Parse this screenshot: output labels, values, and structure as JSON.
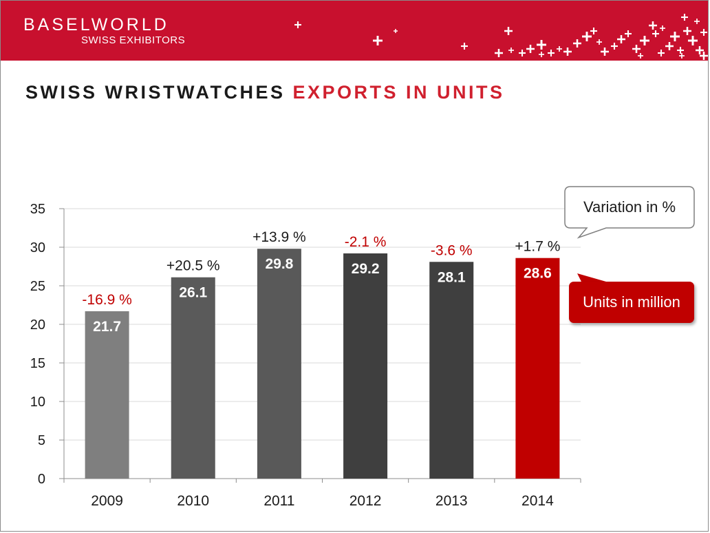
{
  "header": {
    "brand_name": "BASELWORLD",
    "brand_sub": "SWISS EXHIBITORS",
    "bar_color": "#c8102e"
  },
  "title": {
    "part1": "SWISS WRISTWATCHES",
    "part2": "EXPORTS IN UNITS"
  },
  "callouts": {
    "variation": "Variation in %",
    "units": "Units in million"
  },
  "chart_data": {
    "type": "bar",
    "categories": [
      "2009",
      "2010",
      "2011",
      "2012",
      "2013",
      "2014"
    ],
    "values": [
      21.7,
      26.1,
      29.8,
      29.2,
      28.1,
      28.6
    ],
    "value_labels": [
      "21.7",
      "26.1",
      "29.8",
      "29.2",
      "28.1",
      "28.6"
    ],
    "variation_labels": [
      "-16.9 %",
      "+20.5 %",
      "+13.9 %",
      "-2.1 %",
      "-3.6 %",
      "+1.7 %"
    ],
    "bar_colors": [
      "#7f7f7f",
      "#5a5a5a",
      "#595959",
      "#3f3f3f",
      "#3f3f3f",
      "#c00000"
    ],
    "variation_colors": [
      "#c00000",
      "#1a1a1a",
      "#1a1a1a",
      "#c00000",
      "#c00000",
      "#1a1a1a"
    ],
    "ylim": [
      0,
      35
    ],
    "yticks": [
      0,
      5,
      10,
      15,
      20,
      25,
      30,
      35
    ],
    "grid": true,
    "xlabel": "",
    "ylabel": ""
  }
}
